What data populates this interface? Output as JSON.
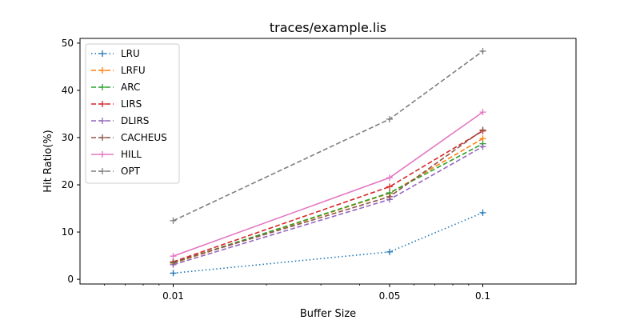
{
  "chart_data": {
    "type": "line",
    "title": "traces/example.lis",
    "xlabel": "Buffer Size",
    "ylabel": "Hit Ratio(%)",
    "x_scale": "log",
    "x": [
      0.01,
      0.05,
      0.1
    ],
    "x_tick_labels": [
      "0.01",
      "0.05",
      "0.1"
    ],
    "xlim": [
      0.005,
      0.2
    ],
    "y_ticks": [
      0,
      10,
      20,
      30,
      40,
      50
    ],
    "y_tick_labels": [
      "0",
      "10",
      "20",
      "30",
      "40",
      "50"
    ],
    "ylim": [
      -1,
      51
    ],
    "grid": false,
    "legend_position": "top-left",
    "series": [
      {
        "name": "LRU",
        "values": [
          1.3,
          5.8,
          14.1
        ],
        "color": "#1f77b4",
        "dash": "dotted",
        "marker": "plus"
      },
      {
        "name": "LRFU",
        "values": [
          3.4,
          18.2,
          29.8
        ],
        "color": "#ff7f0e",
        "dash": "dashed",
        "marker": "plus"
      },
      {
        "name": "ARC",
        "values": [
          3.5,
          18.3,
          28.7
        ],
        "color": "#2ca02c",
        "dash": "dashed",
        "marker": "plus"
      },
      {
        "name": "LIRS",
        "values": [
          3.7,
          19.6,
          31.4
        ],
        "color": "#d62728",
        "dash": "dashed",
        "marker": "plus"
      },
      {
        "name": "DLIRS",
        "values": [
          3.1,
          16.9,
          28.1
        ],
        "color": "#9467bd",
        "dash": "dashed",
        "marker": "plus"
      },
      {
        "name": "CACHEUS",
        "values": [
          3.6,
          17.5,
          31.6
        ],
        "color": "#8c564b",
        "dash": "dashed",
        "marker": "plus"
      },
      {
        "name": "HILL",
        "values": [
          4.9,
          21.5,
          35.4
        ],
        "color": "#e377c2",
        "dash": "solid",
        "marker": "plus"
      },
      {
        "name": "OPT",
        "values": [
          12.4,
          33.9,
          48.3
        ],
        "color": "#7f7f7f",
        "dash": "dashed",
        "marker": "plus"
      }
    ]
  }
}
